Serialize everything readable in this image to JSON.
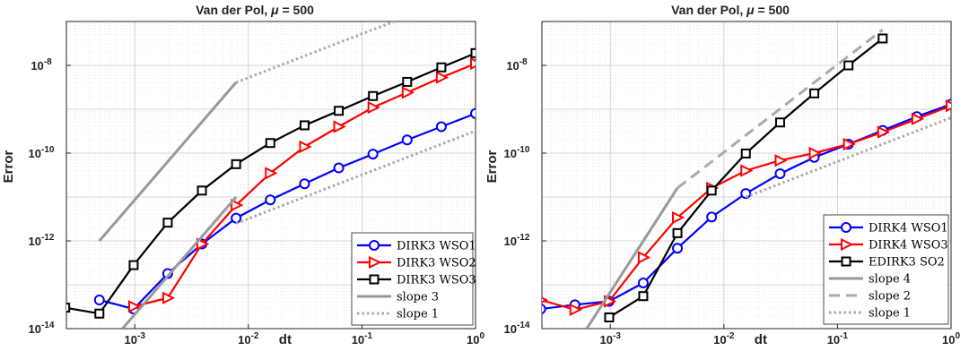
{
  "chart_data": [
    {
      "type": "line",
      "title": "Van der Pol, μ = 500",
      "title_parts": {
        "prefix": "Van der Pol, ",
        "mu": "μ",
        "suffix": " = 500"
      },
      "xlabel": "dt",
      "ylabel": "Error",
      "xscale": "log",
      "yscale": "log",
      "xlim": [
        0.00025,
        1
      ],
      "ylim": [
        1e-14,
        1e-07
      ],
      "grid": true,
      "legend_position": "bottom-right",
      "xticks": [
        {
          "value": 0.001,
          "mantissa": "10",
          "exp": "-3"
        },
        {
          "value": 0.01,
          "mantissa": "10",
          "exp": "-2"
        },
        {
          "value": 0.1,
          "mantissa": "10",
          "exp": "-1"
        },
        {
          "value": 1,
          "mantissa": "10",
          "exp": "0"
        }
      ],
      "yticks": [
        {
          "value": 1e-14,
          "mantissa": "10",
          "exp": "-14"
        },
        {
          "value": 1e-12,
          "mantissa": "10",
          "exp": "-12"
        },
        {
          "value": 1e-10,
          "mantissa": "10",
          "exp": "-10"
        },
        {
          "value": 1e-08,
          "mantissa": "10",
          "exp": "-8"
        }
      ],
      "series": [
        {
          "name": "DIRK3 WSO1",
          "color": "#0000ff",
          "marker": "circle",
          "style": "solid",
          "x": [
            0.000488,
            0.000977,
            0.00195,
            0.0039,
            0.0078,
            0.0156,
            0.03125,
            0.0625,
            0.125,
            0.25,
            0.5,
            1
          ],
          "y": [
            4.5e-14,
            2.8e-14,
            1.8e-13,
            8.5e-13,
            3.3e-12,
            8.6e-12,
            2e-11,
            4.6e-11,
            9.5e-11,
            2e-10,
            4e-10,
            8e-10
          ]
        },
        {
          "name": "DIRK3 WSO2",
          "color": "#ff0000",
          "marker": "triangle-right",
          "style": "solid",
          "x": [
            0.000977,
            0.00195,
            0.0039,
            0.0078,
            0.0156,
            0.03125,
            0.0625,
            0.125,
            0.25,
            0.5,
            1
          ],
          "y": [
            3.2e-14,
            5e-14,
            8.5e-13,
            6.5e-12,
            3.5e-11,
            1.4e-10,
            4e-10,
            1.1e-09,
            2.4e-09,
            5.3e-09,
            1.1e-08
          ]
        },
        {
          "name": "DIRK3 WSO3",
          "color": "#000000",
          "marker": "square",
          "style": "solid",
          "x": [
            0.000244,
            0.000488,
            0.000977,
            0.00195,
            0.0039,
            0.0078,
            0.0156,
            0.03125,
            0.0625,
            0.125,
            0.25,
            0.5,
            1
          ],
          "y": [
            3e-14,
            2.2e-14,
            2.8e-13,
            2.6e-12,
            1.4e-11,
            5.6e-11,
            1.7e-10,
            4.3e-10,
            9.2e-10,
            2e-09,
            4.2e-09,
            9e-09,
            1.9e-08
          ]
        },
        {
          "name": "slope 3",
          "color": "#999999",
          "marker": "none",
          "style": "solid",
          "reference": true,
          "segments": [
            {
              "x": [
                0.000488,
                0.0078
              ],
              "y": [
                1e-12,
                4.1e-09
              ]
            },
            {
              "x": [
                0.00078,
                0.0078
              ],
              "y": [
                1e-14,
                1e-11
              ]
            }
          ]
        },
        {
          "name": "slope 1",
          "color": "#aaaaaa",
          "marker": "none",
          "style": "dotted",
          "reference": true,
          "segments": [
            {
              "x": [
                0.0078,
                1
              ],
              "y": [
                4.1e-09,
                5.2e-07
              ]
            },
            {
              "x": [
                0.0078,
                1
              ],
              "y": [
                2.5e-12,
                3.2e-10
              ]
            }
          ]
        }
      ]
    },
    {
      "type": "line",
      "title": "Van der Pol, μ = 500",
      "title_parts": {
        "prefix": "Van der Pol, ",
        "mu": "μ",
        "suffix": " = 500"
      },
      "xlabel": "dt",
      "ylabel": "Error",
      "xscale": "log",
      "yscale": "log",
      "xlim": [
        0.00025,
        1
      ],
      "ylim": [
        1e-14,
        1e-07
      ],
      "grid": true,
      "legend_position": "bottom-right",
      "xticks": [
        {
          "value": 0.001,
          "mantissa": "10",
          "exp": "-3"
        },
        {
          "value": 0.01,
          "mantissa": "10",
          "exp": "-2"
        },
        {
          "value": 0.1,
          "mantissa": "10",
          "exp": "-1"
        },
        {
          "value": 1,
          "mantissa": "10",
          "exp": "0"
        }
      ],
      "yticks": [
        {
          "value": 1e-14,
          "mantissa": "10",
          "exp": "-14"
        },
        {
          "value": 1e-12,
          "mantissa": "10",
          "exp": "-12"
        },
        {
          "value": 1e-10,
          "mantissa": "10",
          "exp": "-10"
        },
        {
          "value": 1e-08,
          "mantissa": "10",
          "exp": "-8"
        }
      ],
      "series": [
        {
          "name": "DIRK4 WSO1",
          "color": "#0000ff",
          "marker": "circle",
          "style": "solid",
          "x": [
            0.000244,
            0.000488,
            0.000977,
            0.00195,
            0.0039,
            0.0078,
            0.0156,
            0.03125,
            0.0625,
            0.125,
            0.25,
            0.5,
            1
          ],
          "y": [
            2.8e-14,
            3.5e-14,
            4.2e-14,
            1.1e-13,
            6.8e-13,
            3.5e-12,
            1.2e-11,
            3.4e-11,
            8e-11,
            1.6e-10,
            3.3e-10,
            6.8e-10,
            1.3e-09
          ]
        },
        {
          "name": "DIRK4 WSO3",
          "color": "#ff0000",
          "marker": "triangle-right",
          "style": "solid",
          "x": [
            0.000244,
            0.000488,
            0.000977,
            0.00195,
            0.0039,
            0.0078,
            0.0156,
            0.03125,
            0.0625,
            0.125,
            0.25,
            0.5,
            1
          ],
          "y": [
            4.5e-14,
            2.7e-14,
            4.2e-14,
            4.2e-13,
            3.4e-12,
            1.6e-11,
            4e-11,
            6.8e-11,
            1e-10,
            1.6e-10,
            3e-10,
            6e-10,
            1.2e-09
          ]
        },
        {
          "name": "EDIRK3 SO2",
          "color": "#000000",
          "marker": "square",
          "style": "solid",
          "x": [
            0.000977,
            0.00195,
            0.0039,
            0.0078,
            0.0156,
            0.03125,
            0.0625,
            0.125,
            0.25
          ],
          "y": [
            1.8e-14,
            5.5e-14,
            1.5e-12,
            1.4e-11,
            9.8e-11,
            5e-10,
            2.3e-09,
            1e-08,
            4.1e-08
          ]
        },
        {
          "name": "slope 4",
          "color": "#999999",
          "marker": "none",
          "style": "solid",
          "reference": true,
          "segments": [
            {
              "x": [
                0.00062,
                0.0039
              ],
              "y": [
                1e-14,
                1.6e-11
              ]
            }
          ]
        },
        {
          "name": "slope 2",
          "color": "#aaaaaa",
          "marker": "none",
          "style": "dashed",
          "reference": true,
          "segments": [
            {
              "x": [
                0.0039,
                0.25
              ],
              "y": [
                1.6e-11,
                6.5e-08
              ]
            }
          ]
        },
        {
          "name": "slope 1",
          "color": "#aaaaaa",
          "marker": "none",
          "style": "dotted",
          "reference": true,
          "segments": [
            {
              "x": [
                0.0156,
                1
              ],
              "y": [
                1e-11,
                6.4e-10
              ]
            }
          ]
        }
      ]
    }
  ]
}
